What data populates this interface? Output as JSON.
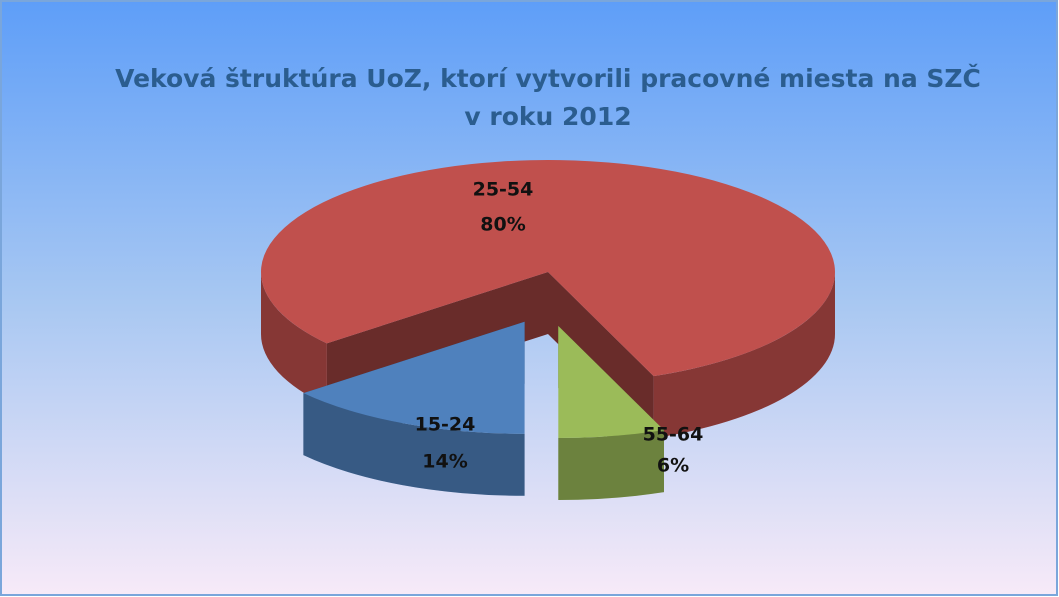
{
  "chart_data": {
    "type": "pie3d",
    "title": [
      "Veková štruktúra  UoZ, ktorí vytvorili pracovné miesta  na SZČ",
      "v roku 2012"
    ],
    "categories": [
      "15-24",
      "25-54",
      "55-64"
    ],
    "values": [
      14,
      80,
      6
    ],
    "value_labels": [
      "14%",
      "80%",
      "6%"
    ],
    "colors": [
      "#4f81bd",
      "#c0504d",
      "#9bbb59"
    ]
  }
}
